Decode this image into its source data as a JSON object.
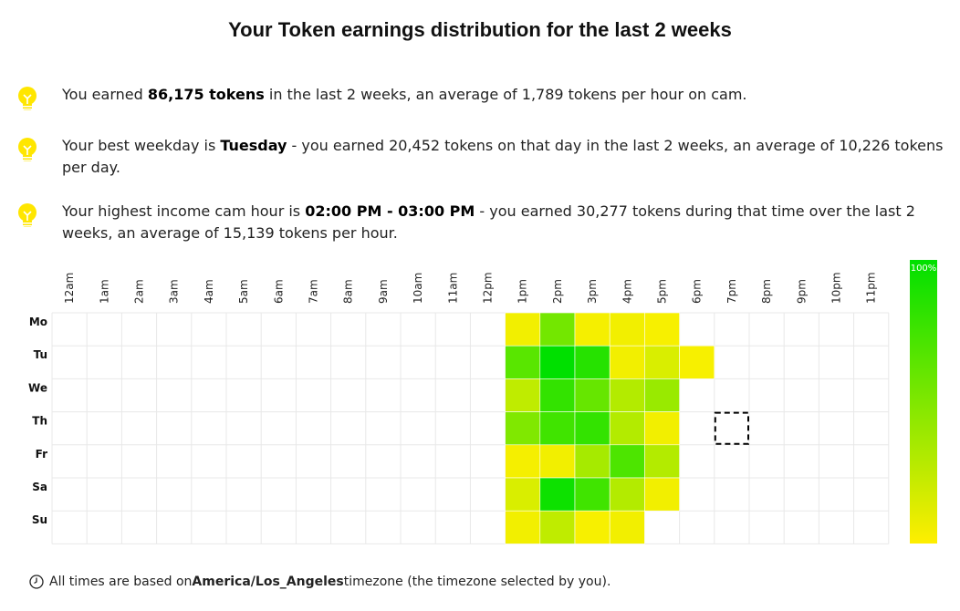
{
  "page": {
    "title": "Your Token earnings distribution for the last 2 weeks",
    "tips": [
      {
        "icon": "lightbulb-icon",
        "text_1": "You earned ",
        "bold_1": "86,175 tokens",
        "text_2": " in the last 2 weeks, an average of 1,789 tokens per hour on cam."
      },
      {
        "icon": "lightbulb-icon",
        "text_1": "Your best weekday is ",
        "bold_1": "Tuesday",
        "text_2": " - you earned 20,452 tokens on that day in the last 2 weeks, an average of 10,226 tokens per day."
      },
      {
        "icon": "lightbulb-icon",
        "text_1": "Your highest income cam hour is ",
        "bold_1": "02:00 PM - 03:00 PM",
        "text_2": " - you earned 30,277 tokens during that time over the last 2 weeks, an average of 15,139 tokens per hour."
      }
    ],
    "footer": {
      "icon": "clock-icon",
      "text_1": "All times are based on ",
      "bold_1": "America/Los_Angeles",
      "text_2": " timezone (the timezone selected by you)."
    },
    "colors": {
      "accent": "#ffee00",
      "high": "#00e000",
      "grid": "#e8e8e8",
      "selection": "#000000"
    }
  },
  "chart_data": {
    "type": "heatmap",
    "title": "Your Token earnings distribution for the last 2 weeks",
    "x_labels": [
      "12am",
      "1am",
      "2am",
      "3am",
      "4am",
      "5am",
      "6am",
      "7am",
      "8am",
      "9am",
      "10am",
      "11am",
      "12pm",
      "1pm",
      "2pm",
      "3pm",
      "4pm",
      "5pm",
      "6pm",
      "7pm",
      "8pm",
      "9pm",
      "10pm",
      "11pm"
    ],
    "y_labels": [
      "Mo",
      "Tu",
      "We",
      "Th",
      "Fr",
      "Sa",
      "Su"
    ],
    "scale_label": "100%",
    "value_unit": "fraction of max hourly earnings",
    "values": [
      [
        0,
        0,
        0,
        0,
        0,
        0,
        0,
        0,
        0,
        0,
        0,
        0,
        0,
        0.05,
        0.55,
        0.04,
        0.05,
        0.03,
        0,
        0,
        0,
        0,
        0,
        0
      ],
      [
        0,
        0,
        0,
        0,
        0,
        0,
        0,
        0,
        0,
        0,
        0,
        0,
        0,
        0.65,
        1.0,
        0.85,
        0.05,
        0.15,
        0.03,
        0,
        0,
        0,
        0,
        0
      ],
      [
        0,
        0,
        0,
        0,
        0,
        0,
        0,
        0,
        0,
        0,
        0,
        0,
        0,
        0.25,
        0.8,
        0.6,
        0.3,
        0.4,
        0,
        0,
        0,
        0,
        0,
        0
      ],
      [
        0,
        0,
        0,
        0,
        0,
        0,
        0,
        0,
        0,
        0,
        0,
        0,
        0,
        0.5,
        0.75,
        0.8,
        0.3,
        0.05,
        0,
        0,
        0,
        0,
        0,
        0
      ],
      [
        0,
        0,
        0,
        0,
        0,
        0,
        0,
        0,
        0,
        0,
        0,
        0,
        0,
        0.04,
        0.05,
        0.35,
        0.7,
        0.3,
        0,
        0,
        0,
        0,
        0,
        0
      ],
      [
        0,
        0,
        0,
        0,
        0,
        0,
        0,
        0,
        0,
        0,
        0,
        0,
        0,
        0.15,
        0.95,
        0.75,
        0.3,
        0.05,
        0,
        0,
        0,
        0,
        0,
        0
      ],
      [
        0,
        0,
        0,
        0,
        0,
        0,
        0,
        0,
        0,
        0,
        0,
        0,
        0,
        0.05,
        0.25,
        0.03,
        0.05,
        0,
        0,
        0,
        0,
        0,
        0,
        0
      ]
    ],
    "selected_cell": {
      "day": "Th",
      "hour": "7pm"
    },
    "legend": "right",
    "grid": true
  }
}
